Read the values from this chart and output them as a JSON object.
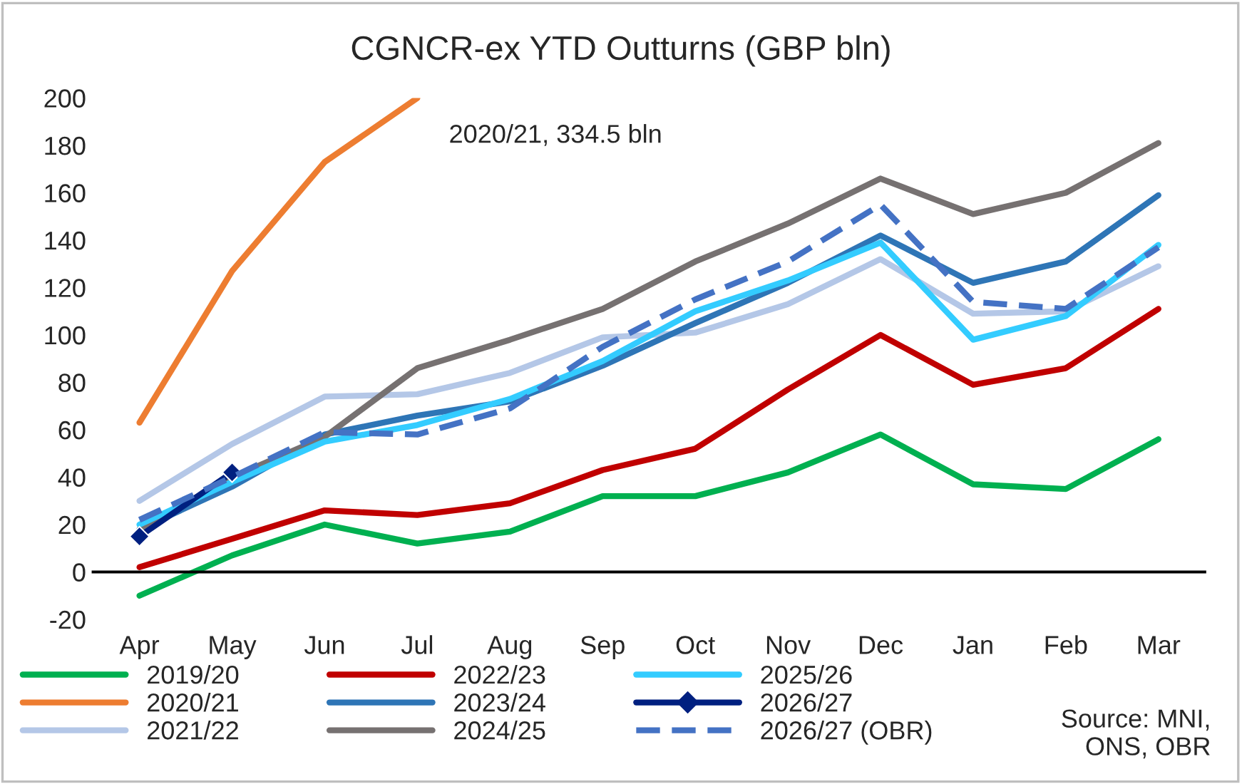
{
  "chart_data": {
    "type": "line",
    "title": "CGNCR-ex YTD Outturns (GBP bln)",
    "categories": [
      "Apr",
      "May",
      "Jun",
      "Jul",
      "Aug",
      "Sep",
      "Oct",
      "Nov",
      "Dec",
      "Jan",
      "Feb",
      "Mar"
    ],
    "series": [
      {
        "name": "2019/20",
        "color": "#00b050",
        "values": [
          -10,
          7,
          20,
          12,
          17,
          32,
          32,
          42,
          58,
          37,
          35,
          56
        ]
      },
      {
        "name": "2020/21",
        "color": "#ed7d31",
        "values": [
          63,
          127,
          173,
          200,
          null,
          null,
          null,
          null,
          null,
          null,
          null,
          null
        ]
      },
      {
        "name": "2021/22",
        "color": "#b4c7e7",
        "values": [
          30,
          54,
          74,
          75,
          84,
          99,
          101,
          113,
          132,
          109,
          110,
          129
        ]
      },
      {
        "name": "2022/23",
        "color": "#c00000",
        "values": [
          2,
          14,
          26,
          24,
          29,
          43,
          52,
          77,
          100,
          79,
          86,
          111
        ]
      },
      {
        "name": "2023/24",
        "color": "#2e75b6",
        "values": [
          18,
          36,
          58,
          66,
          72,
          87,
          105,
          122,
          142,
          122,
          131,
          159
        ]
      },
      {
        "name": "2024/25",
        "color": "#767171",
        "values": [
          18,
          40,
          57,
          86,
          98,
          111,
          131,
          147,
          166,
          151,
          160,
          181
        ]
      },
      {
        "name": "2025/26",
        "color": "#33ccff",
        "values": [
          20,
          38,
          55,
          62,
          73,
          89,
          110,
          123,
          139,
          98,
          108,
          138
        ]
      },
      {
        "name": "2026/27",
        "color": "#002080",
        "marker": "diamond",
        "values": [
          15,
          42,
          null,
          null,
          null,
          null,
          null,
          null,
          null,
          null,
          null,
          null
        ]
      },
      {
        "name": "2026/27 (OBR)",
        "color": "#4472c4",
        "line_style": "dashed",
        "values": [
          22,
          40,
          59,
          58,
          69,
          95,
          115,
          131,
          155,
          114,
          111,
          137
        ]
      }
    ],
    "ylim": [
      -20,
      200
    ],
    "yticks": [
      -20,
      0,
      20,
      40,
      60,
      80,
      100,
      120,
      140,
      160,
      180,
      200
    ],
    "grid": false,
    "legend": "bottom",
    "annotations": [
      "2020/21, 334.5 bln",
      "Source: MNI,\nONS, OBR"
    ]
  }
}
